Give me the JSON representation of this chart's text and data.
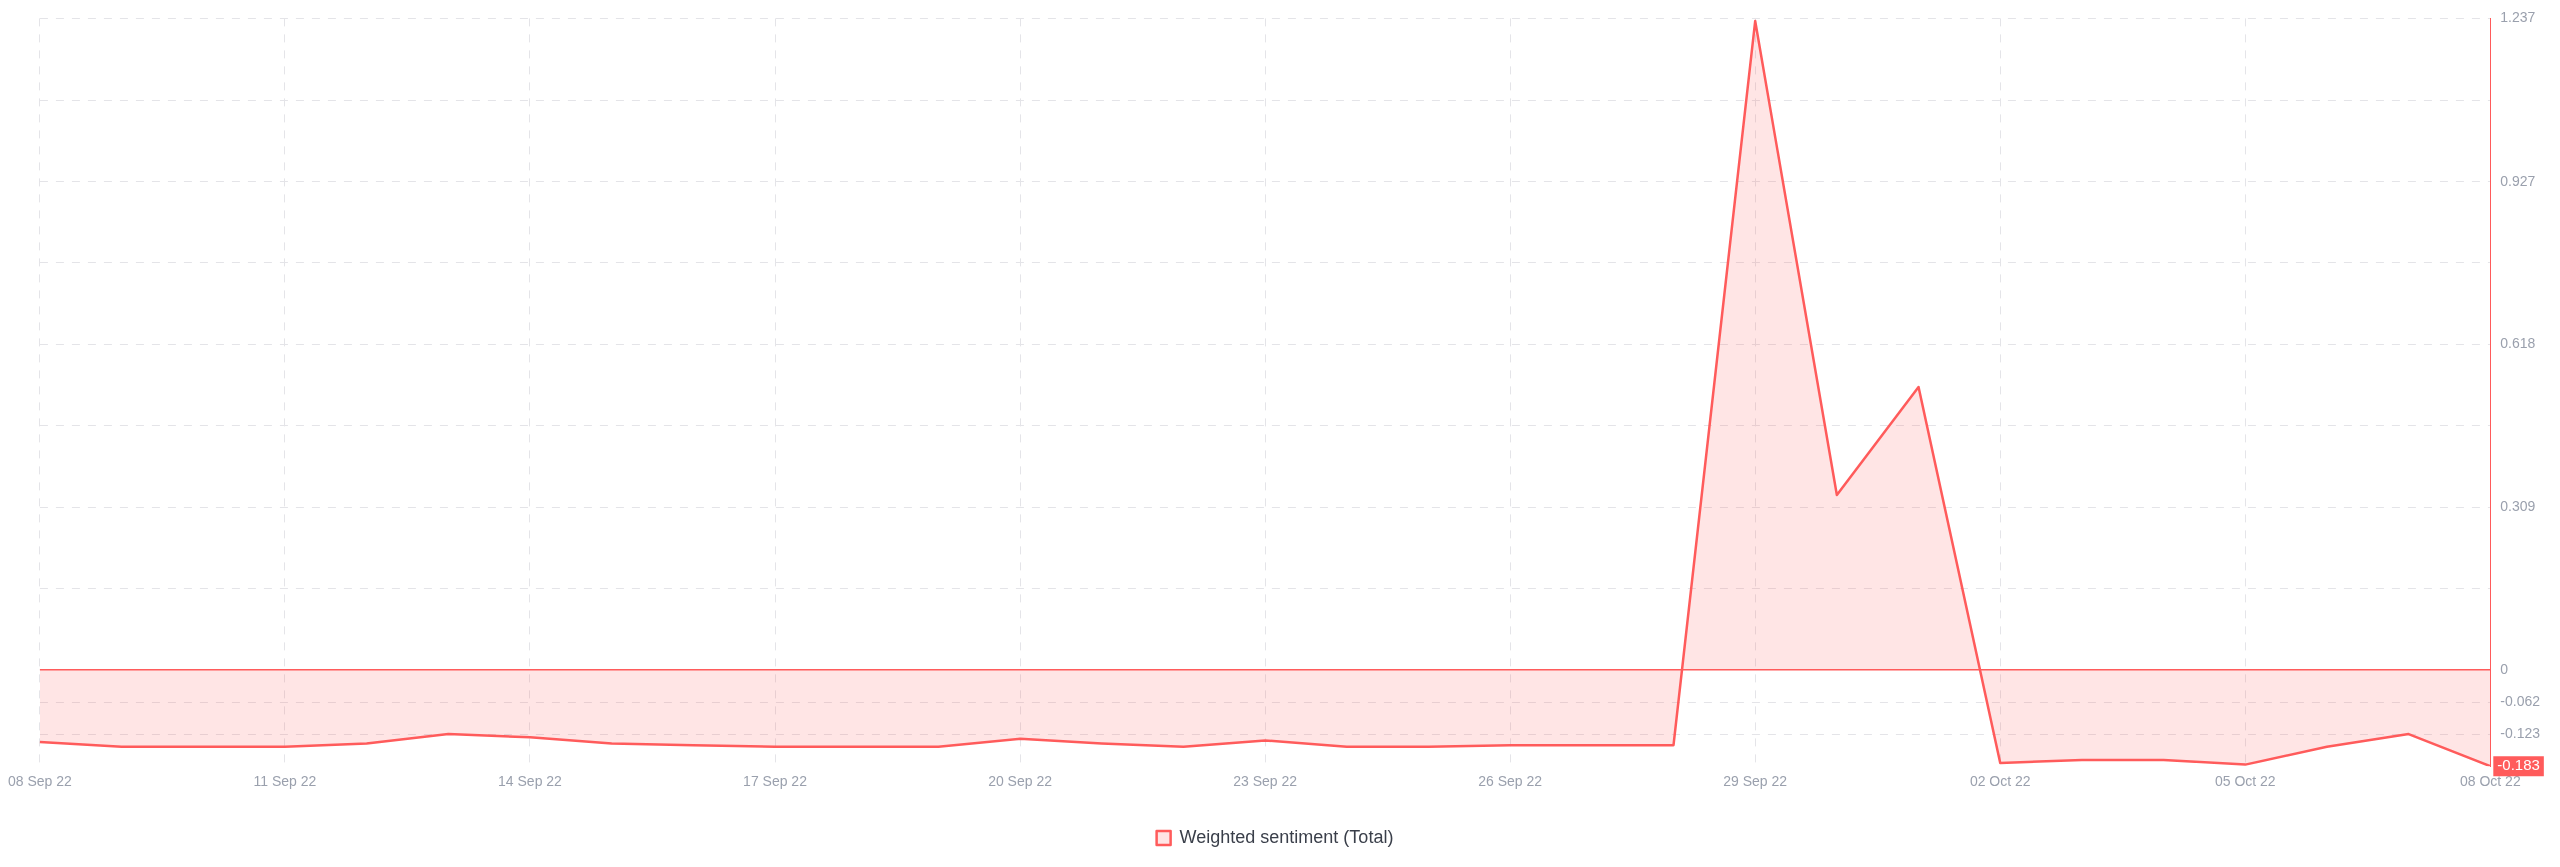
{
  "chart_data": {
    "type": "area",
    "categories": [
      "08 Sep 22",
      null,
      null,
      "11 Sep 22",
      null,
      null,
      "14 Sep 22",
      null,
      null,
      "17 Sep 22",
      null,
      null,
      "20 Sep 22",
      null,
      null,
      "23 Sep 22",
      null,
      null,
      "26 Sep 22",
      null,
      null,
      "29 Sep 22",
      null,
      null,
      "02 Oct 22",
      null,
      null,
      "05 Oct 22",
      null,
      null,
      "08 Oct 22"
    ],
    "series": [
      {
        "name": "Weighted sentiment (Total)",
        "color": "#ff5b5b",
        "values": [
          -0.137,
          -0.146,
          -0.146,
          -0.146,
          -0.14,
          -0.122,
          -0.128,
          -0.14,
          -0.143,
          -0.146,
          -0.146,
          -0.146,
          -0.131,
          -0.14,
          -0.146,
          -0.134,
          -0.146,
          -0.146,
          -0.143,
          -0.143,
          -0.143,
          1.232,
          0.332,
          0.537,
          -0.177,
          -0.171,
          -0.171,
          -0.18,
          -0.146,
          -0.122,
          -0.183
        ],
        "value_labels": [
          null,
          null,
          null,
          null,
          null,
          null,
          null,
          null,
          null,
          null,
          null,
          null,
          null,
          null,
          null,
          null,
          null,
          null,
          null,
          null,
          null,
          null,
          null,
          null,
          null,
          null,
          null,
          null,
          null,
          null,
          "-0.183"
        ]
      }
    ],
    "ylim": [
      -0.183,
      1.237
    ],
    "yticks": [
      1.237,
      {
        "value": 1.082,
        "label": null
      },
      0.927,
      {
        "value": 0.773,
        "label": null
      },
      0.618,
      {
        "value": 0.464,
        "label": null
      },
      0.309,
      {
        "value": 0.155,
        "label": null
      },
      0,
      -0.062,
      -0.123
    ],
    "ref_lines": [
      {
        "axis": "y",
        "value": 0,
        "color": "#ff5b5b"
      }
    ],
    "grid": true,
    "legend": "bottom",
    "marker": "none",
    "line_style": "solid"
  }
}
